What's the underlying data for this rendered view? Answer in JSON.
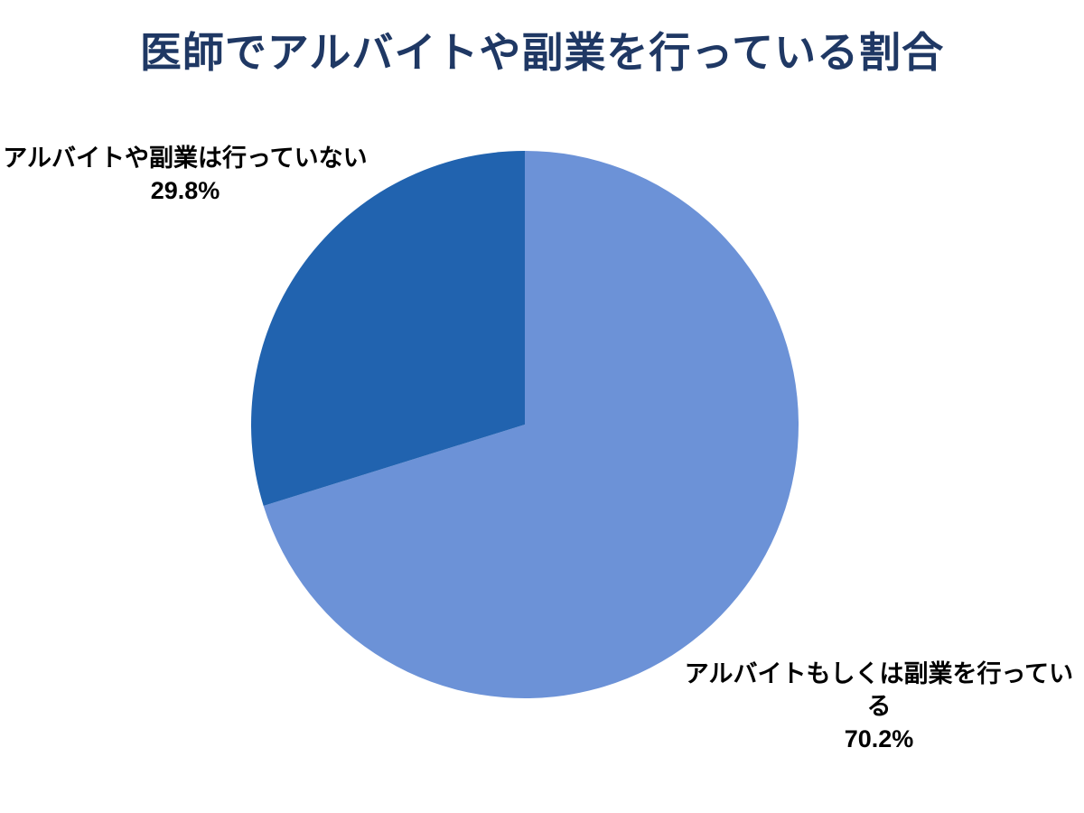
{
  "page": {
    "background": "#FFFFFF"
  },
  "chart_data": {
    "type": "pie",
    "title": "医師でアルバイトや副業を行っている割合",
    "labels": [
      "アルバイトもしくは副業を行っている",
      "アルバイトや副業は行っていない"
    ],
    "values": [
      70.2,
      29.8
    ],
    "value_labels": [
      "70.2%",
      "29.8%"
    ],
    "unit": "%",
    "colors": [
      "#6C92D7",
      "#2163AF"
    ],
    "start_angle_deg": 0,
    "direction": "clockwise",
    "legend_position": "none",
    "label_style": "outside",
    "title_color": "#1F3864",
    "label_text_color": "#000000"
  }
}
